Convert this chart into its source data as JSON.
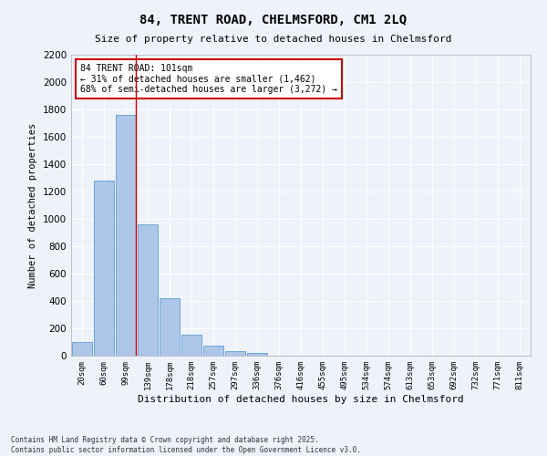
{
  "title": "84, TRENT ROAD, CHELMSFORD, CM1 2LQ",
  "subtitle": "Size of property relative to detached houses in Chelmsford",
  "xlabel": "Distribution of detached houses by size in Chelmsford",
  "ylabel": "Number of detached properties",
  "bar_color": "#aec6e8",
  "bar_edge_color": "#5a9fd4",
  "background_color": "#eef2fa",
  "grid_color": "#ffffff",
  "categories": [
    "20sqm",
    "60sqm",
    "99sqm",
    "139sqm",
    "178sqm",
    "218sqm",
    "257sqm",
    "297sqm",
    "336sqm",
    "376sqm",
    "416sqm",
    "455sqm",
    "495sqm",
    "534sqm",
    "574sqm",
    "613sqm",
    "653sqm",
    "692sqm",
    "732sqm",
    "771sqm",
    "811sqm"
  ],
  "values": [
    100,
    1280,
    1760,
    960,
    420,
    155,
    75,
    35,
    20,
    0,
    0,
    0,
    0,
    0,
    0,
    0,
    0,
    0,
    0,
    0,
    0
  ],
  "annotation_text": "84 TRENT ROAD: 101sqm\n← 31% of detached houses are smaller (1,462)\n68% of semi-detached houses are larger (3,272) →",
  "annotation_box_color": "#cc0000",
  "vline_color": "#cc0000",
  "ylim": [
    0,
    2200
  ],
  "yticks": [
    0,
    200,
    400,
    600,
    800,
    1000,
    1200,
    1400,
    1600,
    1800,
    2000,
    2200
  ],
  "footnote1": "Contains HM Land Registry data © Crown copyright and database right 2025.",
  "footnote2": "Contains public sector information licensed under the Open Government Licence v3.0."
}
